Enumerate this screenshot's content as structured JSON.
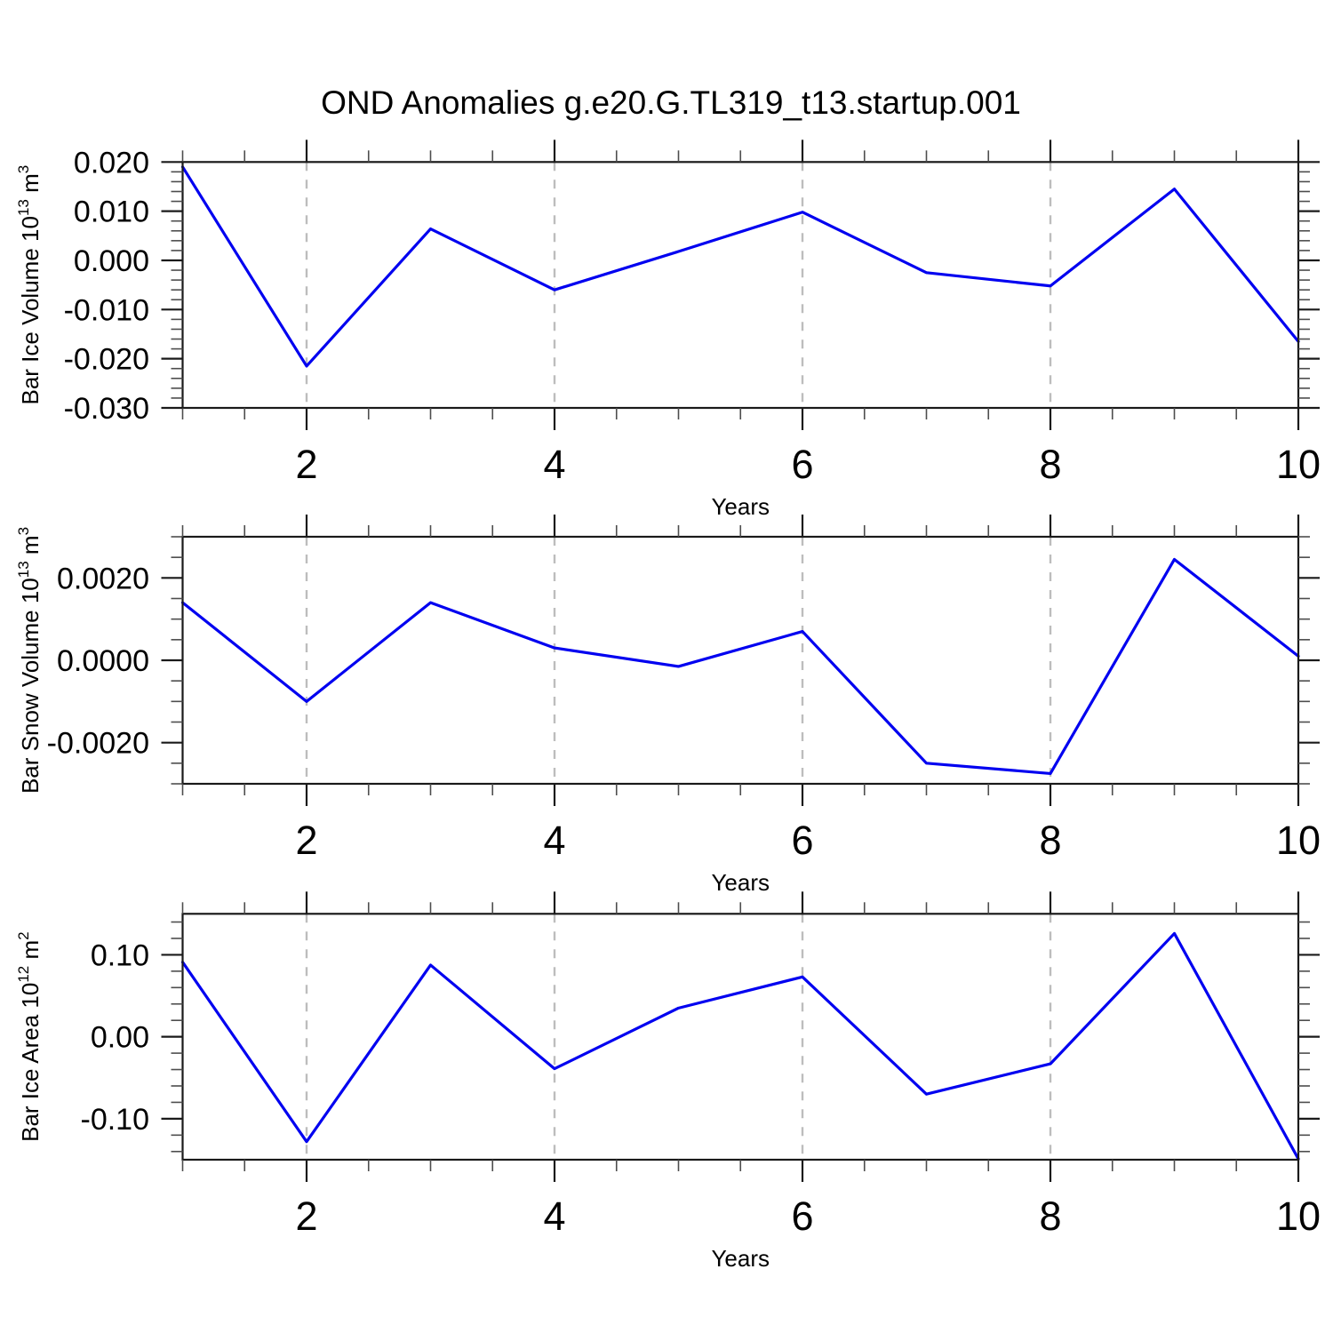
{
  "title": "OND Anomalies g.e20.G.TL319_t13.startup.001",
  "line_color": "#0000f0",
  "x_axis": {
    "label": "Years",
    "min": 1,
    "max": 10,
    "major_ticks": [
      2,
      4,
      6,
      8,
      10
    ],
    "major_labels": [
      "2",
      "4",
      "6",
      "8",
      "10"
    ],
    "minor_step": 0.5,
    "gridlines": [
      2,
      4,
      6,
      8
    ]
  },
  "chart_data": [
    {
      "type": "line",
      "name": "ice-volume-anomaly",
      "ylabel_text": "Bar Ice Volume 10^13 m^3",
      "ylabel_parts": [
        {
          "t": "Bar Ice Volume 10",
          "sup": false
        },
        {
          "t": "13",
          "sup": true
        },
        {
          "t": " m",
          "sup": false
        },
        {
          "t": "3",
          "sup": true
        }
      ],
      "x": [
        1,
        2,
        3,
        4,
        5,
        6,
        7,
        8,
        9,
        10
      ],
      "values": [
        0.019,
        -0.0215,
        0.0064,
        -0.006,
        0.0018,
        0.0098,
        -0.0025,
        -0.0052,
        0.0145,
        -0.0165
      ],
      "ylim": [
        -0.03,
        0.02
      ],
      "yticks": [
        {
          "v": 0.02,
          "label": "0.020"
        },
        {
          "v": 0.01,
          "label": "0.010"
        },
        {
          "v": 0.0,
          "label": "0.000"
        },
        {
          "v": -0.01,
          "label": "-0.010"
        },
        {
          "v": -0.02,
          "label": "-0.020"
        },
        {
          "v": -0.03,
          "label": "-0.030"
        }
      ],
      "yminor_step": 0.002
    },
    {
      "type": "line",
      "name": "snow-volume-anomaly",
      "ylabel_text": "Bar Snow Volume 10^13 m^3",
      "ylabel_parts": [
        {
          "t": "Bar Snow Volume 10",
          "sup": false
        },
        {
          "t": "13",
          "sup": true
        },
        {
          "t": " m",
          "sup": false
        },
        {
          "t": "3",
          "sup": true
        }
      ],
      "x": [
        1,
        2,
        3,
        4,
        5,
        6,
        7,
        8,
        9,
        10
      ],
      "values": [
        0.0014,
        -0.001,
        0.0014,
        0.0003,
        -0.00015,
        0.0007,
        -0.0025,
        -0.00275,
        0.00245,
        0.0001
      ],
      "ylim": [
        -0.003,
        0.003
      ],
      "yticks": [
        {
          "v": 0.002,
          "label": "0.0020"
        },
        {
          "v": 0.0,
          "label": "0.0000"
        },
        {
          "v": -0.002,
          "label": "-0.0020"
        }
      ],
      "yminor_step": 0.0005
    },
    {
      "type": "line",
      "name": "ice-area-anomaly",
      "ylabel_text": "Bar Ice Area 10^12 m^2",
      "ylabel_parts": [
        {
          "t": "Bar Ice Area 10",
          "sup": false
        },
        {
          "t": "12",
          "sup": true
        },
        {
          "t": " m",
          "sup": false
        },
        {
          "t": "2",
          "sup": true
        }
      ],
      "x": [
        1,
        2,
        3,
        4,
        5,
        6,
        7,
        8,
        9,
        10
      ],
      "values": [
        0.091,
        -0.128,
        0.0875,
        -0.039,
        0.035,
        0.073,
        -0.07,
        -0.033,
        0.126,
        -0.149
      ],
      "ylim": [
        -0.15,
        0.15
      ],
      "yticks": [
        {
          "v": 0.1,
          "label": "0.10"
        },
        {
          "v": 0.0,
          "label": "0.00"
        },
        {
          "v": -0.1,
          "label": "-0.10"
        }
      ],
      "yminor_step": 0.02
    }
  ]
}
